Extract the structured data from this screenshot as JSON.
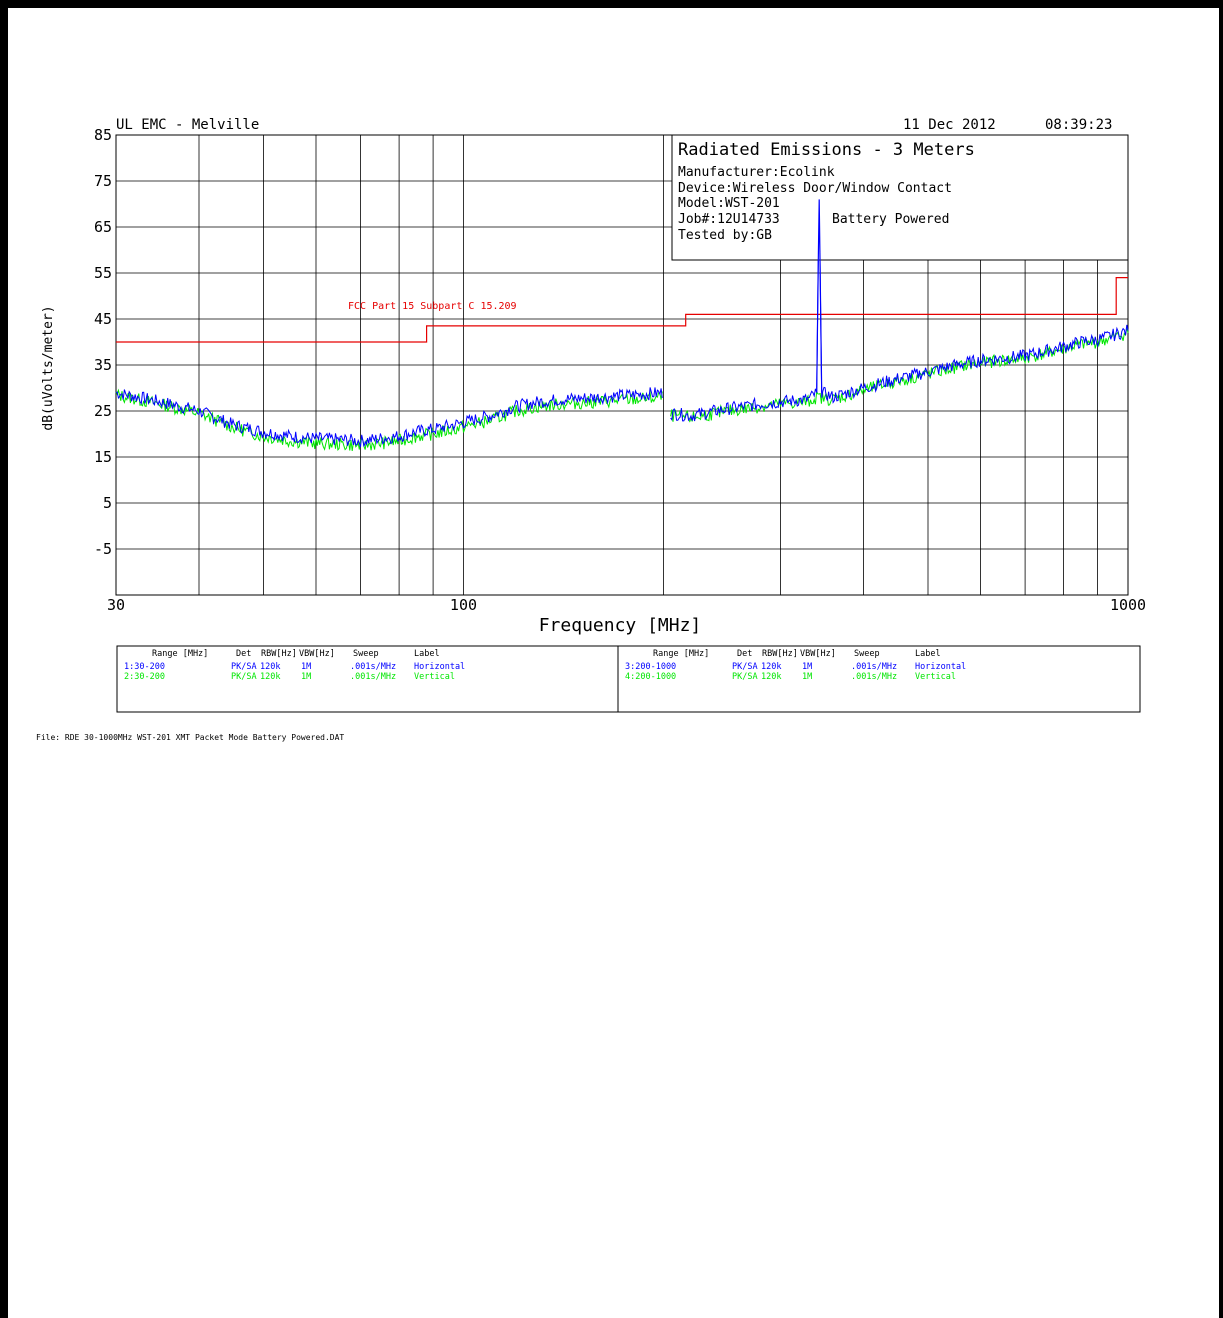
{
  "header": {
    "lab": "UL EMC - Melville",
    "date": "11 Dec 2012",
    "time": "08:39:23"
  },
  "info_box": {
    "title": "Radiated Emissions - 3 Meters",
    "manufacturer": "Manufacturer:Ecolink",
    "device": "Device:Wireless Door/Window Contact",
    "model": "Model:WST-201",
    "job": "Job#:12U14733",
    "power": "Battery Powered",
    "tested_by": "Tested by:GB"
  },
  "colors": {
    "horizontal": "#0000ff",
    "vertical": "#00e600",
    "limit": "#e60000",
    "grid": "#000000"
  },
  "chart_data": {
    "type": "line",
    "title": "",
    "xlabel": "Frequency [MHz]",
    "ylabel": "dB(uVolts/meter)",
    "xscale": "log",
    "xlim": [
      30,
      1000
    ],
    "ylim": [
      -15,
      85
    ],
    "yticks": [
      85,
      75,
      65,
      55,
      45,
      35,
      25,
      15,
      5,
      -5
    ],
    "xtick_labels": [
      {
        "value": 30,
        "label": "30"
      },
      {
        "value": 100,
        "label": "100"
      },
      {
        "value": 1000,
        "label": "1000"
      }
    ],
    "x_gridlines": [
      30,
      40,
      50,
      60,
      70,
      80,
      90,
      100,
      200,
      300,
      400,
      500,
      600,
      700,
      800,
      900,
      1000
    ],
    "grid": true,
    "limit_line": {
      "label": "FCC Part 15 Subpart C 15.209",
      "points": [
        [
          30,
          40
        ],
        [
          88,
          40
        ],
        [
          88,
          43.5
        ],
        [
          216,
          43.5
        ],
        [
          216,
          46
        ],
        [
          960,
          46
        ],
        [
          960,
          54
        ],
        [
          1000,
          54
        ]
      ]
    },
    "series": [
      {
        "name": "Horizontal",
        "points": [
          [
            30,
            29
          ],
          [
            35,
            27
          ],
          [
            40,
            25
          ],
          [
            45,
            22
          ],
          [
            50,
            20.5
          ],
          [
            55,
            19.5
          ],
          [
            60,
            19
          ],
          [
            65,
            18.8
          ],
          [
            70,
            18.5
          ],
          [
            75,
            19
          ],
          [
            80,
            19.5
          ],
          [
            85,
            20.5
          ],
          [
            90,
            21
          ],
          [
            100,
            22.5
          ],
          [
            110,
            24
          ],
          [
            120,
            26
          ],
          [
            130,
            27
          ],
          [
            140,
            27.5
          ],
          [
            160,
            28
          ],
          [
            180,
            28.5
          ],
          [
            200,
            29
          ],
          [
            205,
            24.5
          ],
          [
            220,
            24
          ],
          [
            250,
            25.5
          ],
          [
            280,
            26.5
          ],
          [
            300,
            27
          ],
          [
            330,
            27.5
          ],
          [
            340,
            29
          ],
          [
            342,
            58
          ],
          [
            343,
            71
          ],
          [
            344,
            58
          ],
          [
            346,
            29
          ],
          [
            360,
            28
          ],
          [
            400,
            30
          ],
          [
            450,
            32
          ],
          [
            500,
            33.5
          ],
          [
            550,
            35
          ],
          [
            600,
            36
          ],
          [
            650,
            36.5
          ],
          [
            700,
            37
          ],
          [
            750,
            38
          ],
          [
            800,
            39
          ],
          [
            850,
            40
          ],
          [
            900,
            40.5
          ],
          [
            950,
            41.5
          ],
          [
            1000,
            42.5
          ]
        ]
      },
      {
        "name": "Vertical",
        "points": [
          [
            30,
            28.5
          ],
          [
            35,
            26.5
          ],
          [
            40,
            24.5
          ],
          [
            45,
            21.5
          ],
          [
            50,
            19.5
          ],
          [
            55,
            18.5
          ],
          [
            60,
            18
          ],
          [
            65,
            17.8
          ],
          [
            70,
            17.5
          ],
          [
            75,
            18
          ],
          [
            80,
            18.5
          ],
          [
            85,
            19.5
          ],
          [
            90,
            20
          ],
          [
            100,
            21.5
          ],
          [
            110,
            23
          ],
          [
            120,
            25
          ],
          [
            130,
            26
          ],
          [
            140,
            26.5
          ],
          [
            160,
            27
          ],
          [
            180,
            27.5
          ],
          [
            200,
            28
          ],
          [
            205,
            24
          ],
          [
            220,
            23.5
          ],
          [
            250,
            25
          ],
          [
            280,
            26
          ],
          [
            300,
            26.5
          ],
          [
            330,
            27
          ],
          [
            340,
            28
          ],
          [
            360,
            27.5
          ],
          [
            400,
            29.5
          ],
          [
            450,
            31.5
          ],
          [
            500,
            33
          ],
          [
            550,
            34.5
          ],
          [
            600,
            35.5
          ],
          [
            650,
            36
          ],
          [
            700,
            36.5
          ],
          [
            750,
            37.5
          ],
          [
            800,
            38.5
          ],
          [
            850,
            39.5
          ],
          [
            900,
            40
          ],
          [
            950,
            41
          ],
          [
            1000,
            42
          ]
        ]
      }
    ]
  },
  "table": {
    "headers": [
      "Range [MHz]",
      "Det",
      "RBW[Hz]",
      "VBW[Hz]",
      "Sweep",
      "Label"
    ],
    "left_rows": [
      {
        "range": "1:30-200",
        "det": "PK/SA",
        "rbw": "120k",
        "vbw": "1M",
        "sweep": ".001s/MHz",
        "label": "Horizontal",
        "color": "#0000ff"
      },
      {
        "range": "2:30-200",
        "det": "PK/SA",
        "rbw": "120k",
        "vbw": "1M",
        "sweep": ".001s/MHz",
        "label": "Vertical",
        "color": "#00e600"
      }
    ],
    "right_rows": [
      {
        "range": "3:200-1000",
        "det": "PK/SA",
        "rbw": "120k",
        "vbw": "1M",
        "sweep": ".001s/MHz",
        "label": "Horizontal",
        "color": "#0000ff"
      },
      {
        "range": "4:200-1000",
        "det": "PK/SA",
        "rbw": "120k",
        "vbw": "1M",
        "sweep": ".001s/MHz",
        "label": "Vertical",
        "color": "#00e600"
      }
    ]
  },
  "footer": {
    "file": "File: RDE 30-1000MHz WST-201 XMT Packet Mode Battery Powered.DAT"
  }
}
